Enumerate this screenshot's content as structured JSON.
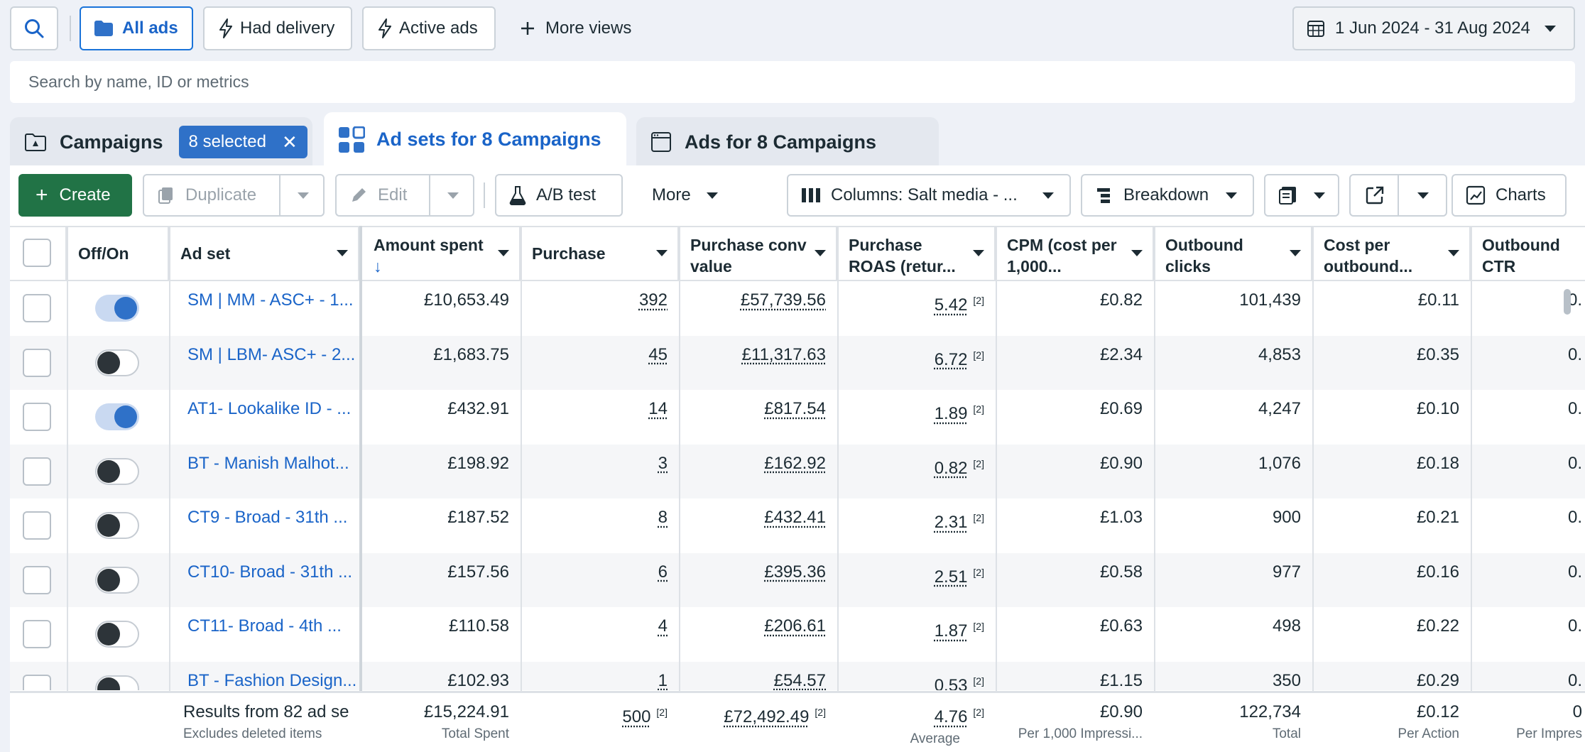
{
  "view_bar": {
    "all_ads": "All ads",
    "had_delivery": "Had delivery",
    "active_ads": "Active ads",
    "more_views": "More views",
    "date_range": "1 Jun 2024 - 31 Aug 2024"
  },
  "search": {
    "placeholder": "Search by name, ID or metrics"
  },
  "tabs": {
    "campaigns": "Campaigns",
    "selected_chip": "8 selected",
    "ad_sets": "Ad sets for 8 Campaigns",
    "ads": "Ads for 8 Campaigns"
  },
  "toolbar": {
    "create": "Create",
    "duplicate": "Duplicate",
    "edit": "Edit",
    "ab_test": "A/B test",
    "more": "More",
    "columns": "Columns: Salt media - ...",
    "breakdown": "Breakdown",
    "charts": "Charts"
  },
  "columns": {
    "off_on": "Off/On",
    "ad_set": "Ad set",
    "amount_spent": "Amount spent",
    "purchase": "Purchase",
    "purchase_conv_value_1": "Purchase conv",
    "purchase_conv_value_2": "value",
    "roas_1": "Purchase",
    "roas_2": "ROAS (retur...",
    "cpm_1": "CPM (cost per",
    "cpm_2": "1,000...",
    "outbound_clicks_1": "Outbound",
    "outbound_clicks_2": "clicks",
    "cost_per_outbound_1": "Cost per",
    "cost_per_outbound_2": "outbound...",
    "outbound_ctr_1": "Outbound",
    "outbound_ctr_2": "CTR (click-..."
  },
  "rows": [
    {
      "name": "SM | MM - ASC+ - 1...",
      "on": true,
      "spent": "£10,653.49",
      "purchase": "392",
      "conv_value": "£57,739.56",
      "roas": "5.42",
      "cpm": "£0.82",
      "clicks": "101,439",
      "cost_per": "£0.11",
      "ctr": "0."
    },
    {
      "name": "SM | LBM- ASC+ - 2...",
      "on": false,
      "spent": "£1,683.75",
      "purchase": "45",
      "conv_value": "£11,317.63",
      "roas": "6.72",
      "cpm": "£2.34",
      "clicks": "4,853",
      "cost_per": "£0.35",
      "ctr": "0."
    },
    {
      "name": "AT1- Lookalike ID - ...",
      "on": true,
      "spent": "£432.91",
      "purchase": "14",
      "conv_value": "£817.54",
      "roas": "1.89",
      "cpm": "£0.69",
      "clicks": "4,247",
      "cost_per": "£0.10",
      "ctr": "0."
    },
    {
      "name": "BT - Manish Malhot...",
      "on": false,
      "spent": "£198.92",
      "purchase": "3",
      "conv_value": "£162.92",
      "roas": "0.82",
      "cpm": "£0.90",
      "clicks": "1,076",
      "cost_per": "£0.18",
      "ctr": "0."
    },
    {
      "name": "CT9 - Broad - 31th ...",
      "on": false,
      "spent": "£187.52",
      "purchase": "8",
      "conv_value": "£432.41",
      "roas": "2.31",
      "cpm": "£1.03",
      "clicks": "900",
      "cost_per": "£0.21",
      "ctr": "0."
    },
    {
      "name": "CT10- Broad - 31th ...",
      "on": false,
      "spent": "£157.56",
      "purchase": "6",
      "conv_value": "£395.36",
      "roas": "2.51",
      "cpm": "£0.58",
      "clicks": "977",
      "cost_per": "£0.16",
      "ctr": "0."
    },
    {
      "name": "CT11- Broad - 4th ...",
      "on": false,
      "spent": "£110.58",
      "purchase": "4",
      "conv_value": "£206.61",
      "roas": "1.87",
      "cpm": "£0.63",
      "clicks": "498",
      "cost_per": "£0.22",
      "ctr": "0."
    },
    {
      "name": "BT - Fashion Design...",
      "on": false,
      "spent": "£102.93",
      "purchase": "1",
      "conv_value": "£54.57",
      "roas": "0.53",
      "cpm": "£1.15",
      "clicks": "350",
      "cost_per": "£0.29",
      "ctr": "0."
    }
  ],
  "attribution_marker": "[2]",
  "footer": {
    "results_label": "Results from 82 ad se",
    "excludes_label": "Excludes deleted items",
    "spent": "£15,224.91",
    "spent_sub": "Total Spent",
    "purchase": "500",
    "conv_value": "£72,492.49",
    "roas": "4.76",
    "roas_sub": "Average",
    "cpm": "£0.90",
    "cpm_sub": "Per 1,000 Impressi...",
    "clicks": "122,734",
    "clicks_sub": "Total",
    "cost_per": "£0.12",
    "cost_per_sub": "Per Action",
    "ctr": "0",
    "ctr_sub": "Per Impres"
  },
  "colors": {
    "accent": "#1a64c8",
    "create_green": "#217346",
    "toggle_on": "#2f71c8"
  }
}
